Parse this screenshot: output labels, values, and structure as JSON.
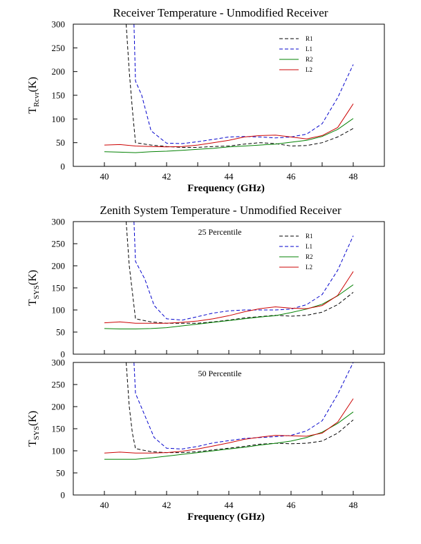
{
  "chart_data": [
    {
      "type": "line",
      "title": "Receiver Temperature - Unmodified Receiver",
      "xlabel": "Frequency (GHz)",
      "ylabel": {
        "main": "T",
        "sub": "Rcvr",
        "rest": "(K)"
      },
      "annotation": "",
      "xlim": [
        39,
        49
      ],
      "ylim": [
        0,
        300
      ],
      "xticks": [
        "40",
        "42",
        "44",
        "46",
        "48"
      ],
      "yticks": [
        "0",
        "50",
        "100",
        "150",
        "200",
        "250",
        "300"
      ],
      "grid": false,
      "legend_position": "top-right",
      "series": [
        {
          "name": "R1",
          "color": "#000000",
          "dash": "dashed",
          "points": [
            [
              40.7,
              300
            ],
            [
              40.8,
              200
            ],
            [
              40.9,
              120
            ],
            [
              41,
              50
            ],
            [
              41.5,
              45
            ],
            [
              42,
              42
            ],
            [
              42.5,
              40
            ],
            [
              43,
              40
            ],
            [
              43.5,
              42
            ],
            [
              44,
              43
            ],
            [
              44.5,
              47
            ],
            [
              45,
              50
            ],
            [
              45.5,
              48
            ],
            [
              46,
              43
            ],
            [
              46.5,
              44
            ],
            [
              47,
              50
            ],
            [
              47.5,
              62
            ],
            [
              48,
              80
            ]
          ]
        },
        {
          "name": "L1",
          "color": "#0000cc",
          "dash": "dashed",
          "points": [
            [
              40.95,
              300
            ],
            [
              41,
              180
            ],
            [
              41.2,
              150
            ],
            [
              41.5,
              75
            ],
            [
              42,
              49
            ],
            [
              42.5,
              48
            ],
            [
              43,
              52
            ],
            [
              43.5,
              57
            ],
            [
              44,
              62
            ],
            [
              44.5,
              63
            ],
            [
              45,
              62
            ],
            [
              45.5,
              60
            ],
            [
              46,
              62
            ],
            [
              46.5,
              68
            ],
            [
              47,
              90
            ],
            [
              47.5,
              145
            ],
            [
              48,
              215
            ]
          ]
        },
        {
          "name": "R2",
          "color": "#008000",
          "dash": "solid",
          "points": [
            [
              40,
              31
            ],
            [
              40.5,
              30
            ],
            [
              41,
              29
            ],
            [
              41.5,
              31
            ],
            [
              42,
              32
            ],
            [
              42.5,
              34
            ],
            [
              43,
              36
            ],
            [
              43.5,
              38
            ],
            [
              44,
              41
            ],
            [
              44.5,
              43
            ],
            [
              45,
              45
            ],
            [
              45.5,
              47
            ],
            [
              46,
              51
            ],
            [
              46.5,
              55
            ],
            [
              47,
              63
            ],
            [
              47.5,
              78
            ],
            [
              48,
              101
            ]
          ]
        },
        {
          "name": "L2",
          "color": "#cc0000",
          "dash": "solid",
          "points": [
            [
              40,
              45
            ],
            [
              40.5,
              46
            ],
            [
              41,
              43
            ],
            [
              41.5,
              42
            ],
            [
              42,
              41
            ],
            [
              42.5,
              42
            ],
            [
              43,
              45
            ],
            [
              43.5,
              50
            ],
            [
              44,
              55
            ],
            [
              44.5,
              62
            ],
            [
              45,
              65
            ],
            [
              45.5,
              66
            ],
            [
              46,
              62
            ],
            [
              46.5,
              58
            ],
            [
              47,
              65
            ],
            [
              47.5,
              82
            ],
            [
              48,
              132
            ]
          ]
        }
      ]
    },
    {
      "type": "line",
      "title": "Zenith System Temperature - Unmodified Receiver",
      "xlabel": "",
      "ylabel": {
        "main": "T",
        "sub": "SYS",
        "rest": "(K)"
      },
      "annotation": "25 Percentile",
      "xlim": [
        39,
        49
      ],
      "ylim": [
        0,
        300
      ],
      "xticks": [],
      "yticks": [
        "0",
        "50",
        "100",
        "150",
        "200",
        "250",
        "300"
      ],
      "grid": false,
      "legend_position": "top-right",
      "series": [
        {
          "name": "R1",
          "color": "#000000",
          "dash": "dashed",
          "points": [
            [
              40.7,
              300
            ],
            [
              40.8,
              200
            ],
            [
              40.9,
              140
            ],
            [
              41,
              80
            ],
            [
              41.5,
              73
            ],
            [
              42,
              70
            ],
            [
              42.5,
              70
            ],
            [
              43,
              70
            ],
            [
              43.5,
              73
            ],
            [
              44,
              77
            ],
            [
              44.5,
              82
            ],
            [
              45,
              85
            ],
            [
              45.5,
              88
            ],
            [
              46,
              86
            ],
            [
              46.5,
              88
            ],
            [
              47,
              95
            ],
            [
              47.5,
              112
            ],
            [
              48,
              140
            ]
          ]
        },
        {
          "name": "L1",
          "color": "#0000cc",
          "dash": "dashed",
          "points": [
            [
              40.95,
              300
            ],
            [
              41,
              210
            ],
            [
              41.3,
              170
            ],
            [
              41.6,
              110
            ],
            [
              42,
              80
            ],
            [
              42.5,
              77
            ],
            [
              43,
              85
            ],
            [
              43.5,
              93
            ],
            [
              44,
              98
            ],
            [
              44.5,
              100
            ],
            [
              45,
              100
            ],
            [
              45.5,
              100
            ],
            [
              46,
              102
            ],
            [
              46.5,
              112
            ],
            [
              47,
              135
            ],
            [
              47.5,
              190
            ],
            [
              48,
              268
            ]
          ]
        },
        {
          "name": "R2",
          "color": "#008000",
          "dash": "solid",
          "points": [
            [
              40,
              58
            ],
            [
              40.5,
              57
            ],
            [
              41,
              57
            ],
            [
              41.5,
              58
            ],
            [
              42,
              60
            ],
            [
              42.5,
              64
            ],
            [
              43,
              68
            ],
            [
              43.5,
              72
            ],
            [
              44,
              76
            ],
            [
              44.5,
              80
            ],
            [
              45,
              84
            ],
            [
              45.5,
              87
            ],
            [
              46,
              94
            ],
            [
              46.5,
              102
            ],
            [
              47,
              113
            ],
            [
              47.5,
              132
            ],
            [
              48,
              157
            ]
          ]
        },
        {
          "name": "L2",
          "color": "#cc0000",
          "dash": "solid",
          "points": [
            [
              40,
              71
            ],
            [
              40.5,
              73
            ],
            [
              41,
              70
            ],
            [
              41.5,
              70
            ],
            [
              42,
              70
            ],
            [
              42.5,
              72
            ],
            [
              43,
              75
            ],
            [
              43.5,
              80
            ],
            [
              44,
              87
            ],
            [
              44.5,
              96
            ],
            [
              45,
              103
            ],
            [
              45.5,
              107
            ],
            [
              46,
              104
            ],
            [
              46.5,
              103
            ],
            [
              47,
              110
            ],
            [
              47.5,
              133
            ],
            [
              48,
              187
            ]
          ]
        }
      ]
    },
    {
      "type": "line",
      "title": "",
      "xlabel": "Frequency (GHz)",
      "ylabel": {
        "main": "T",
        "sub": "SYS",
        "rest": "(K)"
      },
      "annotation": "50 Percentile",
      "xlim": [
        39,
        49
      ],
      "ylim": [
        0,
        300
      ],
      "xticks": [
        "40",
        "42",
        "44",
        "46",
        "48"
      ],
      "yticks": [
        "0",
        "50",
        "100",
        "150",
        "200",
        "250",
        "300"
      ],
      "grid": false,
      "legend_position": "",
      "series": [
        {
          "name": "R1",
          "color": "#000000",
          "dash": "dashed",
          "points": [
            [
              40.7,
              300
            ],
            [
              40.8,
              200
            ],
            [
              40.9,
              140
            ],
            [
              41,
              105
            ],
            [
              41.5,
              98
            ],
            [
              42,
              96
            ],
            [
              42.5,
              96
            ],
            [
              43,
              98
            ],
            [
              43.5,
              102
            ],
            [
              44,
              106
            ],
            [
              44.5,
              110
            ],
            [
              45,
              115
            ],
            [
              45.5,
              117
            ],
            [
              46,
              116
            ],
            [
              46.5,
              117
            ],
            [
              47,
              122
            ],
            [
              47.5,
              140
            ],
            [
              48,
              170
            ]
          ]
        },
        {
          "name": "L1",
          "color": "#0000cc",
          "dash": "dashed",
          "points": [
            [
              40.95,
              300
            ],
            [
              41,
              230
            ],
            [
              41.3,
              180
            ],
            [
              41.6,
              130
            ],
            [
              42,
              106
            ],
            [
              42.5,
              104
            ],
            [
              43,
              110
            ],
            [
              43.5,
              118
            ],
            [
              44,
              123
            ],
            [
              44.5,
              128
            ],
            [
              45,
              130
            ],
            [
              45.5,
              132
            ],
            [
              46,
              135
            ],
            [
              46.5,
              145
            ],
            [
              47,
              168
            ],
            [
              47.5,
              228
            ],
            [
              48,
              300
            ]
          ]
        },
        {
          "name": "R2",
          "color": "#008000",
          "dash": "solid",
          "points": [
            [
              40,
              81
            ],
            [
              40.5,
              81
            ],
            [
              41,
              81
            ],
            [
              41.5,
              84
            ],
            [
              42,
              88
            ],
            [
              42.5,
              92
            ],
            [
              43,
              96
            ],
            [
              43.5,
              100
            ],
            [
              44,
              104
            ],
            [
              44.5,
              108
            ],
            [
              45,
              113
            ],
            [
              45.5,
              117
            ],
            [
              46,
              122
            ],
            [
              46.5,
              130
            ],
            [
              47,
              142
            ],
            [
              47.5,
              162
            ],
            [
              48,
              188
            ]
          ]
        },
        {
          "name": "L2",
          "color": "#cc0000",
          "dash": "solid",
          "points": [
            [
              40,
              95
            ],
            [
              40.5,
              97
            ],
            [
              41,
              95
            ],
            [
              41.5,
              95
            ],
            [
              42,
              96
            ],
            [
              42.5,
              99
            ],
            [
              43,
              104
            ],
            [
              43.5,
              111
            ],
            [
              44,
              118
            ],
            [
              44.5,
              126
            ],
            [
              45,
              131
            ],
            [
              45.5,
              135
            ],
            [
              46,
              134
            ],
            [
              46.5,
              133
            ],
            [
              47,
              140
            ],
            [
              47.5,
              165
            ],
            [
              48,
              218
            ]
          ]
        }
      ]
    }
  ]
}
